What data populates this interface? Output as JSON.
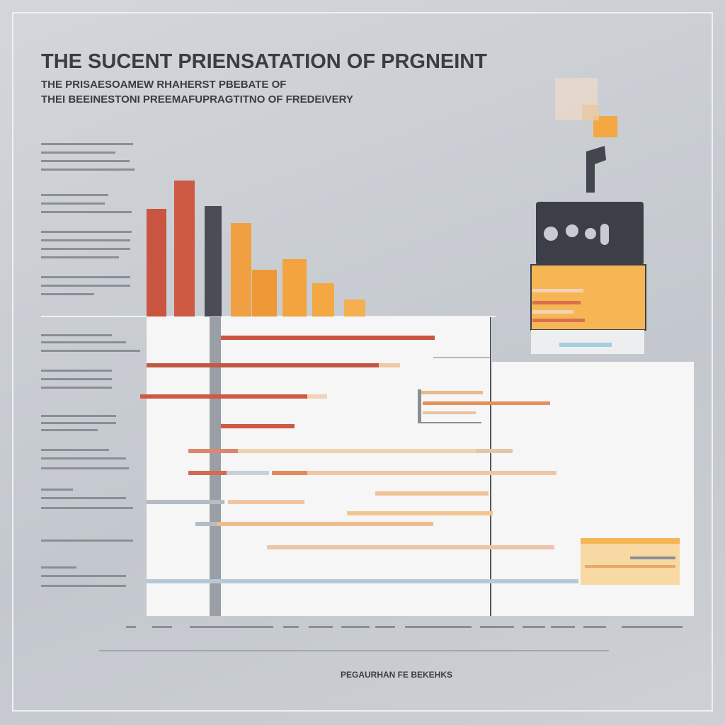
{
  "header": {
    "title": "THE SUCENT PRIENSATATION OF PRGNEINT",
    "subtitle_lines": [
      "THE PRISAESOAMEW RHAHERST PBEBATE OF",
      "THEI BEEINESTONI PREEMAFUPRAGTITNO OF FREDEIVERY"
    ]
  },
  "footer": {
    "label": "PEGAURHAN FE BEKEHKS"
  }
}
